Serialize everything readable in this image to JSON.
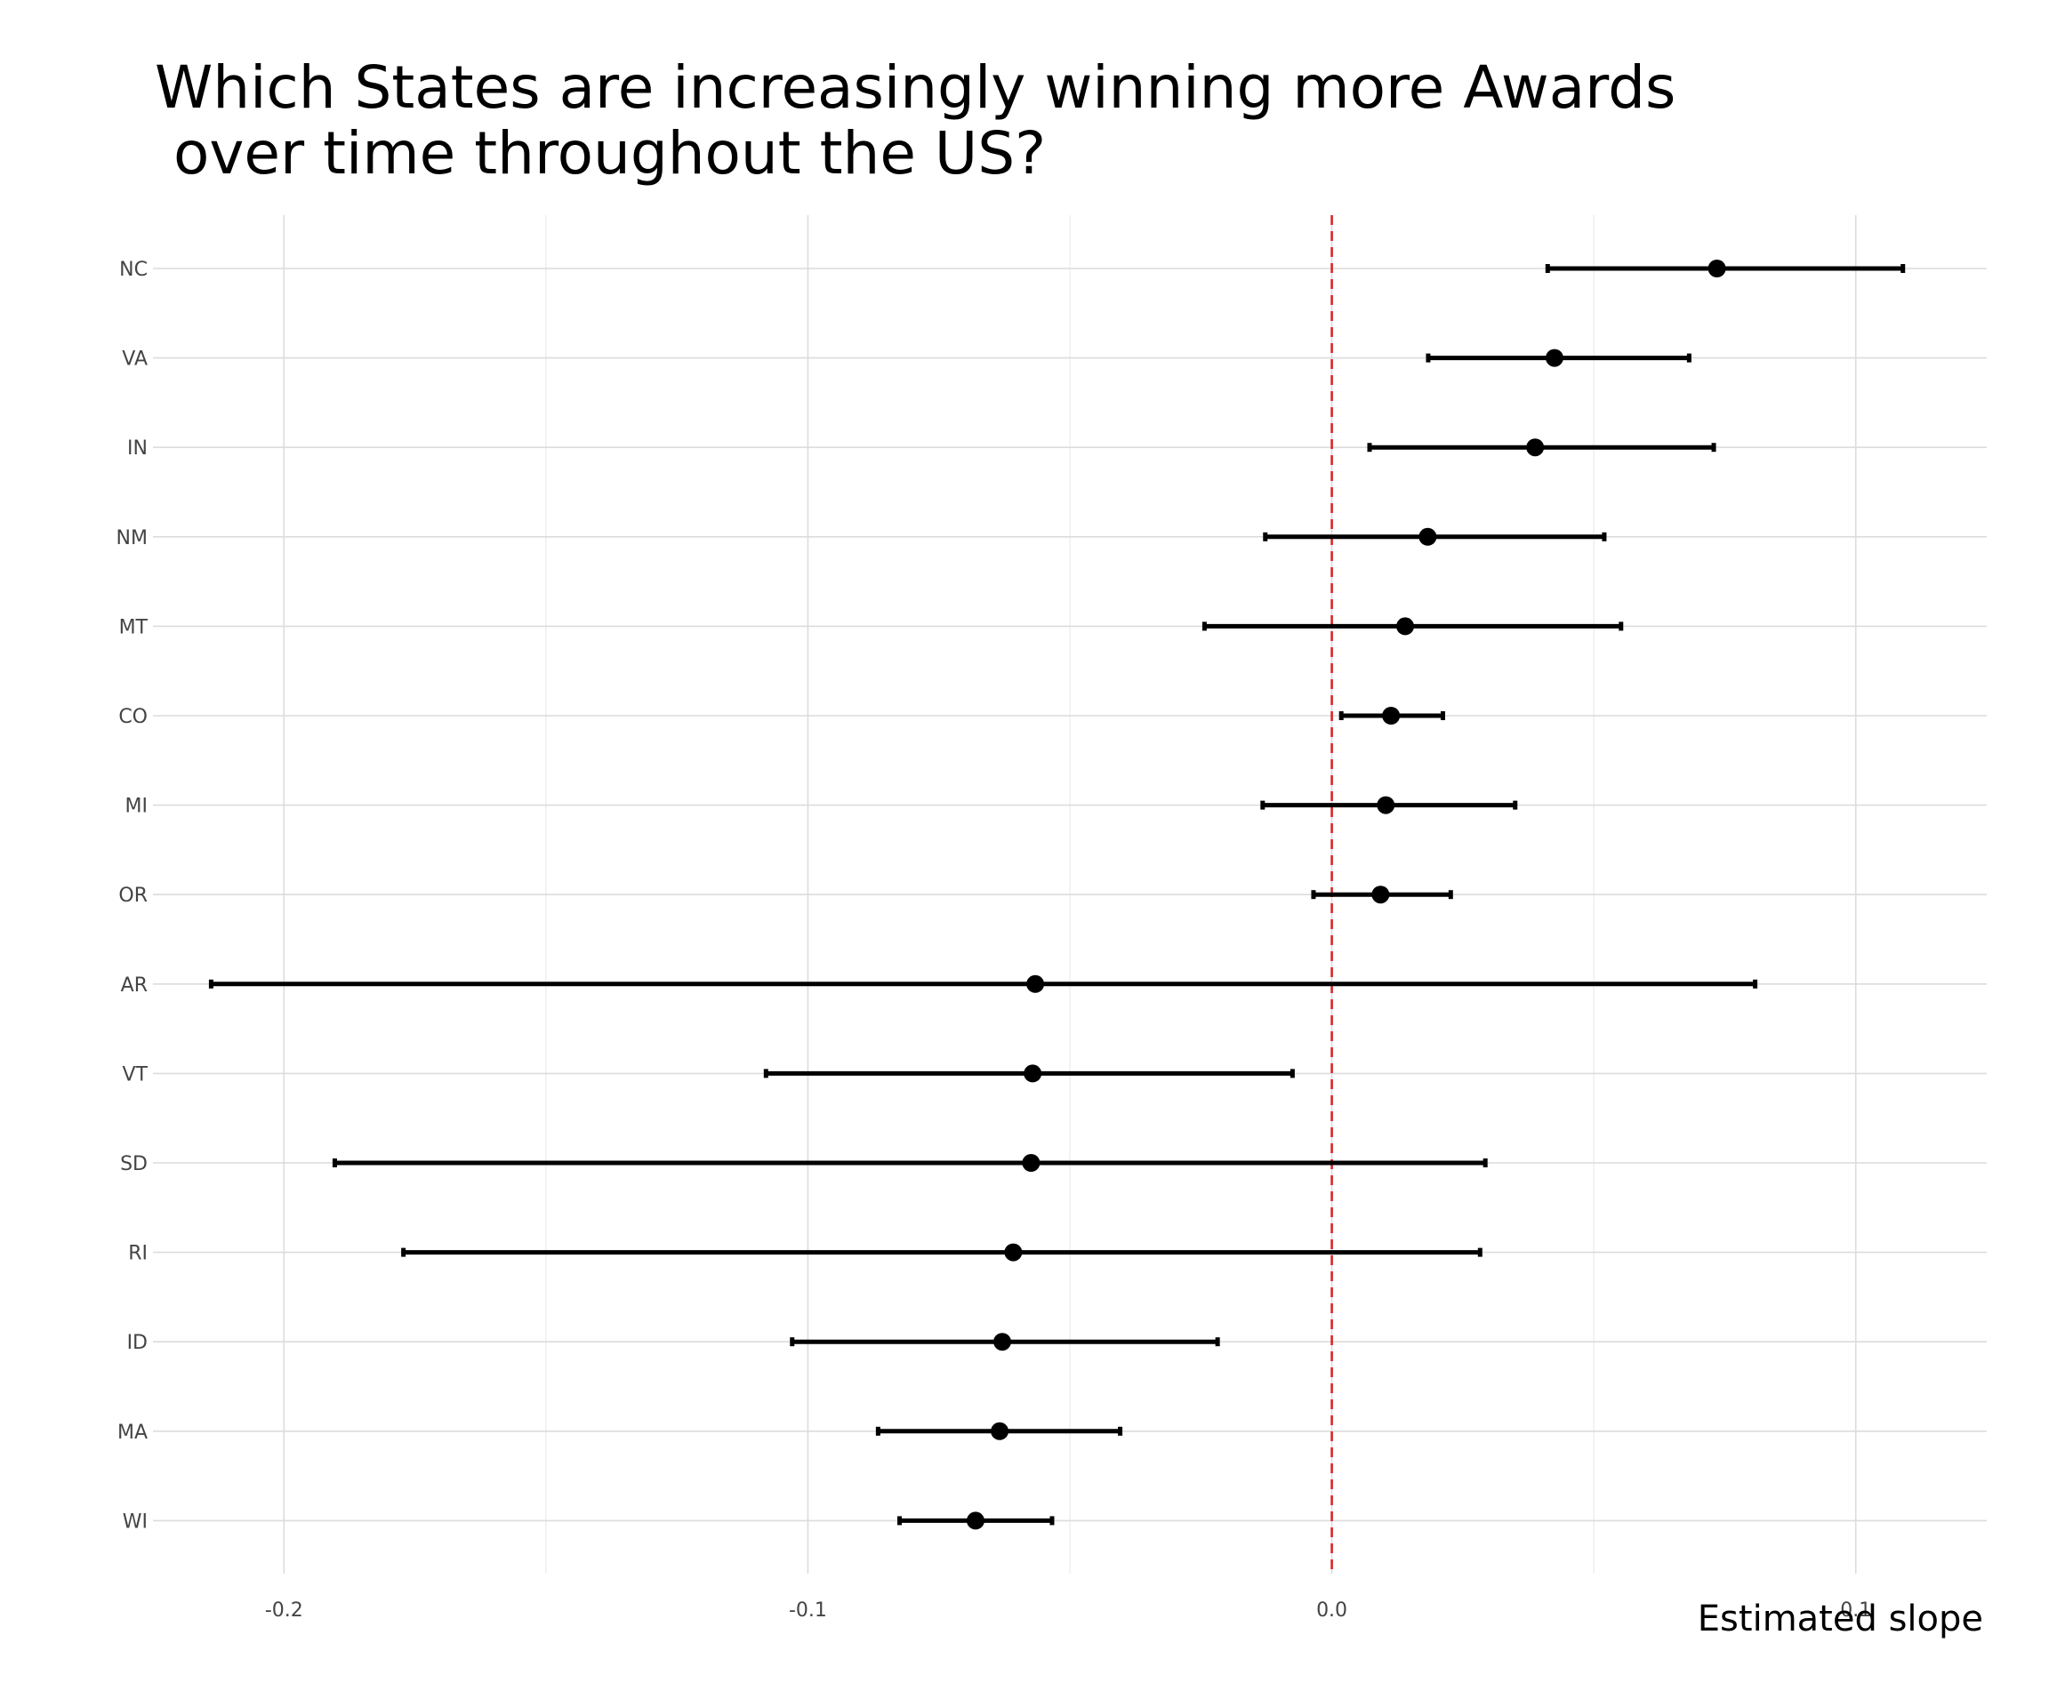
{
  "chart_data": {
    "type": "errorbar",
    "title": "Which States are increasingly winning more Awards\n over time throughout the US?",
    "xlabel": "Estimated slope",
    "ylabel": "",
    "xlim": [
      -0.225,
      0.125
    ],
    "xticks": [
      -0.2,
      -0.1,
      0.0,
      0.1
    ],
    "xtick_labels": [
      "-0.2",
      "-0.1",
      "0.0",
      "0.1"
    ],
    "grid": true,
    "reference_line": {
      "x": 0.0,
      "color": "#d62728",
      "style": "dashed"
    },
    "point_color": "#000000",
    "categories": [
      "NC",
      "VA",
      "IN",
      "NM",
      "MT",
      "CO",
      "MI",
      "OR",
      "AR",
      "VT",
      "SD",
      "RI",
      "ID",
      "MA",
      "WI"
    ],
    "estimate": [
      0.0735,
      0.0425,
      0.0388,
      0.0183,
      0.014,
      0.0113,
      0.0103,
      0.0093,
      -0.0566,
      -0.0571,
      -0.0574,
      -0.0608,
      -0.0629,
      -0.0634,
      -0.068
    ],
    "lower": [
      0.0412,
      0.0184,
      0.0072,
      -0.0127,
      -0.0243,
      0.0018,
      -0.0132,
      -0.0035,
      -0.2139,
      -0.108,
      -0.1903,
      -0.1772,
      -0.103,
      -0.0866,
      -0.0825
    ],
    "upper": [
      0.109,
      0.0682,
      0.0729,
      0.052,
      0.0552,
      0.0212,
      0.035,
      0.0227,
      0.0808,
      -0.0075,
      0.0293,
      0.0283,
      -0.0218,
      -0.0404,
      -0.0534
    ]
  }
}
